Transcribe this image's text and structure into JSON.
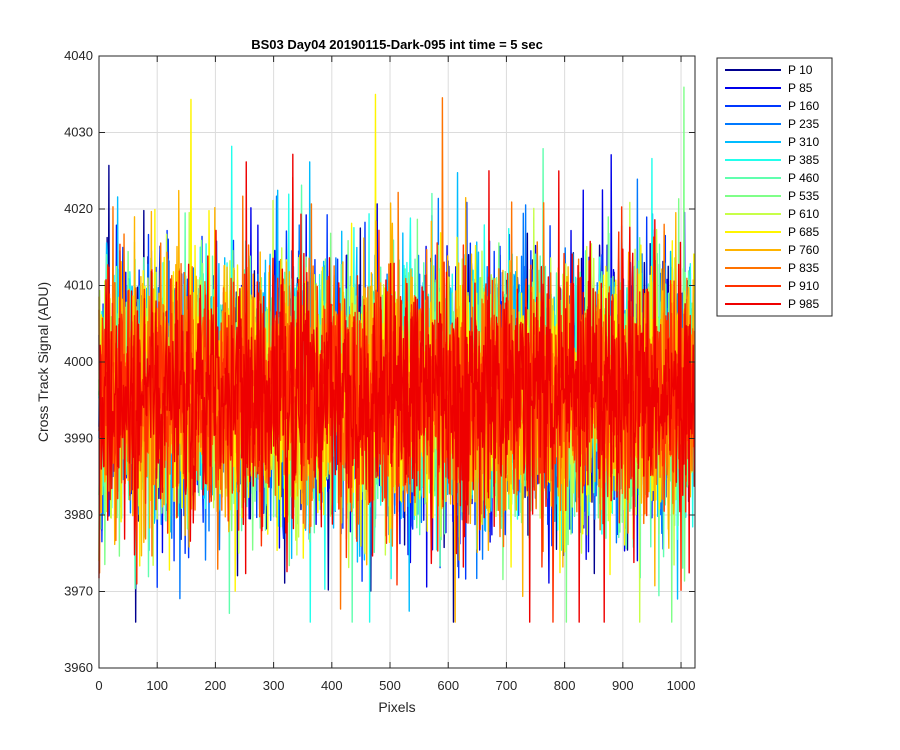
{
  "chart_data": {
    "type": "line",
    "title": "BS03 Day04 20190115-Dark-095 int time = 5 sec",
    "xlabel": "Pixels",
    "ylabel": "Cross Track Signal (ADU)",
    "xlim": [
      0,
      1024
    ],
    "ylim": [
      3960,
      4040
    ],
    "xticks": [
      0,
      100,
      200,
      300,
      400,
      500,
      600,
      700,
      800,
      900,
      1000
    ],
    "yticks": [
      3960,
      3970,
      3980,
      3990,
      4000,
      4010,
      4020,
      4030,
      4040
    ],
    "grid": true,
    "legend_position": "outside-top-right",
    "series_summary": {
      "num_pixels": 1024,
      "mean_level": 3996,
      "typical_range": [
        3980,
        4013
      ],
      "extreme_range": [
        3966,
        4036
      ]
    },
    "series": [
      {
        "name": "P 10",
        "color": "#00008F"
      },
      {
        "name": "P 85",
        "color": "#0000EA"
      },
      {
        "name": "P 160",
        "color": "#0038FF"
      },
      {
        "name": "P 235",
        "color": "#0079FF"
      },
      {
        "name": "P 310",
        "color": "#00BCFF"
      },
      {
        "name": "P 385",
        "color": "#22FFEC"
      },
      {
        "name": "P 460",
        "color": "#60FFAE"
      },
      {
        "name": "P 535",
        "color": "#7FFF88"
      },
      {
        "name": "P 610",
        "color": "#C7FF49"
      },
      {
        "name": "P 685",
        "color": "#FFF500"
      },
      {
        "name": "P 760",
        "color": "#FFB400"
      },
      {
        "name": "P 835",
        "color": "#FF7300"
      },
      {
        "name": "P 910",
        "color": "#FF3100"
      },
      {
        "name": "P 985",
        "color": "#EE0000"
      }
    ]
  }
}
